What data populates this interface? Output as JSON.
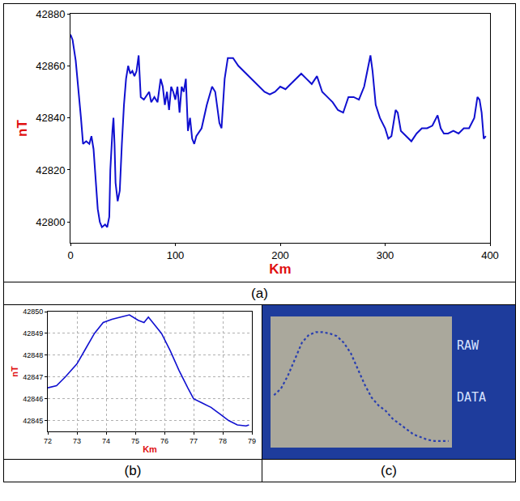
{
  "chart_data": [
    {
      "type": "line",
      "caption": "(a)",
      "x_label": "Km",
      "y_label": "nT",
      "color": "#1010d0",
      "grid": false,
      "x": [
        0,
        2,
        5,
        8,
        10,
        12,
        15,
        18,
        20,
        22,
        24,
        26,
        28,
        30,
        33,
        35,
        37,
        38,
        40,
        41,
        42,
        43,
        45,
        47,
        49,
        51,
        53,
        55,
        57,
        59,
        61,
        63,
        65,
        67,
        70,
        73,
        75,
        77,
        80,
        83,
        86,
        88,
        90,
        92,
        94,
        96,
        98,
        100,
        102,
        104,
        106,
        108,
        110,
        112,
        114,
        116,
        118,
        120,
        125,
        130,
        135,
        138,
        142,
        144,
        147,
        150,
        155,
        160,
        165,
        170,
        175,
        180,
        185,
        190,
        195,
        200,
        205,
        210,
        215,
        220,
        225,
        230,
        235,
        240,
        245,
        250,
        255,
        260,
        265,
        270,
        275,
        280,
        283,
        286,
        288,
        291,
        295,
        300,
        303,
        306,
        310,
        312,
        315,
        320,
        325,
        330,
        335,
        340,
        345,
        350,
        353,
        356,
        360,
        365,
        370,
        375,
        380,
        385,
        388,
        390,
        392,
        394,
        396
      ],
      "values": [
        42872,
        42870,
        42862,
        42850,
        42840,
        42830,
        42831,
        42830,
        42833,
        42828,
        42815,
        42805,
        42800,
        42798,
        42799,
        42798,
        42802,
        42820,
        42835,
        42840,
        42830,
        42815,
        42808,
        42812,
        42830,
        42845,
        42855,
        42860,
        42857,
        42858,
        42856,
        42858,
        42864,
        42848,
        42847,
        42849,
        42850,
        42846,
        42848,
        42846,
        42855,
        42852,
        42845,
        42850,
        42843,
        42852,
        42850,
        42847,
        42852,
        42842,
        42852,
        42850,
        42855,
        42835,
        42840,
        42832,
        42830,
        42833,
        42836,
        42845,
        42852,
        42850,
        42838,
        42836,
        42855,
        42863,
        42863,
        42860,
        42858,
        42856,
        42854,
        42852,
        42850,
        42849,
        42850,
        42852,
        42851,
        42853,
        42855,
        42857,
        42855,
        42853,
        42856,
        42850,
        42848,
        42846,
        42843,
        42842,
        42848,
        42848,
        42847,
        42852,
        42858,
        42864,
        42858,
        42845,
        42840,
        42836,
        42832,
        42833,
        42843,
        42842,
        42835,
        42833,
        42831,
        42834,
        42836,
        42836,
        42837,
        42841,
        42836,
        42834,
        42834,
        42835,
        42834,
        42836,
        42836,
        42840,
        42848,
        42847,
        42842,
        42832,
        42833
      ],
      "xlim": [
        0,
        400
      ],
      "xticks": [
        0,
        100,
        200,
        300,
        400
      ],
      "ylim": [
        42792,
        42880
      ],
      "yticks": [
        42800,
        42820,
        42840,
        42860,
        42880
      ]
    },
    {
      "type": "line",
      "caption": "(b)",
      "x_label": "Km",
      "y_label": "nT",
      "color": "#1010d0",
      "grid": true,
      "x": [
        72,
        72.3,
        72.6,
        73,
        73.3,
        73.6,
        73.9,
        74.2,
        74.5,
        74.8,
        75.1,
        75.3,
        75.45,
        75.6,
        75.9,
        76.2,
        76.5,
        76.8,
        77,
        77.3,
        77.6,
        77.9,
        78.2,
        78.5,
        78.8,
        78.9
      ],
      "values": [
        42846.5,
        42846.6,
        42847,
        42847.6,
        42848.3,
        42849,
        42849.5,
        42849.65,
        42849.75,
        42849.85,
        42849.6,
        42849.5,
        42849.75,
        42849.5,
        42849,
        42848.2,
        42847.3,
        42846.5,
        42846,
        42845.8,
        42845.6,
        42845.3,
        42845,
        42844.8,
        42844.75,
        42844.8
      ],
      "xlim": [
        72,
        79
      ],
      "xticks": [
        72,
        73,
        74,
        75,
        76,
        77,
        78,
        79
      ],
      "ylim": [
        42844.5,
        42850
      ],
      "yticks": [
        42845,
        42846,
        42847,
        42848,
        42849,
        42850
      ]
    },
    {
      "type": "line",
      "caption": "(c)",
      "annotations": [
        "RAW",
        "DATA"
      ],
      "color": "#2a3fb0",
      "line_style": "dotted",
      "tick_labels": false,
      "grid": false,
      "x": [
        0,
        4,
        8,
        12,
        16,
        20,
        24,
        28,
        32,
        36,
        40,
        44,
        48,
        52,
        56,
        60,
        64,
        68,
        72,
        76,
        80,
        84,
        88,
        92,
        96,
        100
      ],
      "values": [
        40,
        45,
        55,
        68,
        80,
        86,
        88,
        88,
        87,
        85,
        80,
        72,
        60,
        48,
        38,
        32,
        28,
        22,
        18,
        14,
        10,
        8,
        6,
        5,
        5,
        5
      ],
      "xlim": [
        -2,
        102
      ],
      "ylim": [
        0,
        100
      ]
    }
  ]
}
